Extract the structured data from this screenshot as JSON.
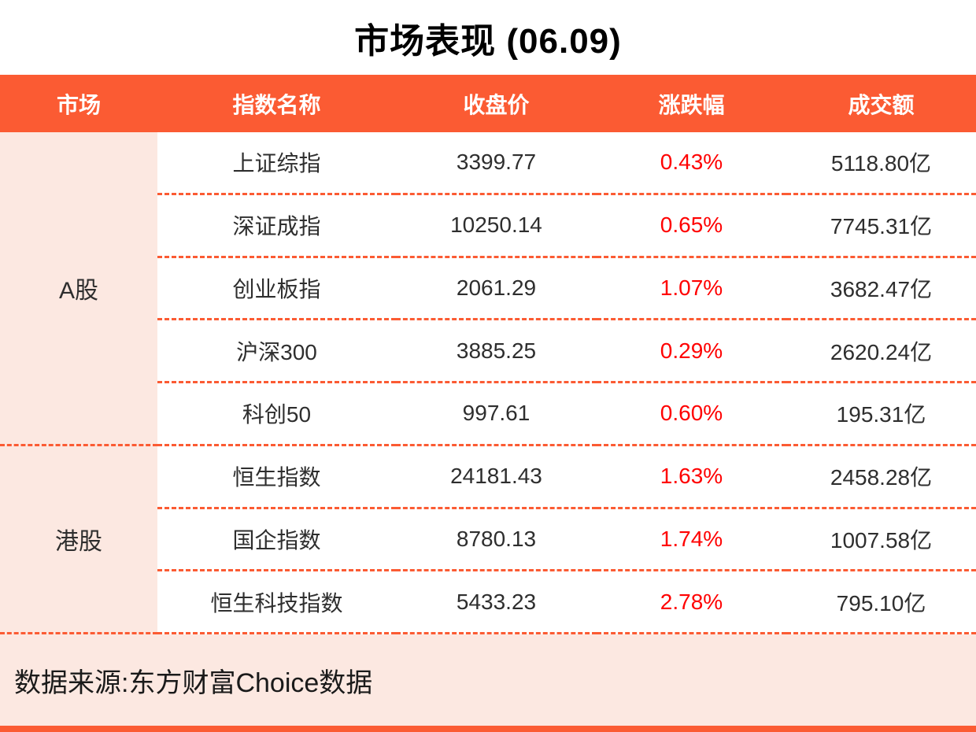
{
  "title": "市场表现 (06.09)",
  "colors": {
    "accent": "#FB5B33",
    "peach": "#FCE8E1",
    "up_red": "#FF0000",
    "body_text": "#2E2E2E"
  },
  "table": {
    "headers": [
      "市场",
      "指数名称",
      "收盘价",
      "涨跌幅",
      "成交额"
    ],
    "groups": [
      {
        "market": "A股",
        "rows": [
          {
            "name": "上证综指",
            "close": "3399.77",
            "change": "0.43%",
            "turnover": "5118.80亿"
          },
          {
            "name": "深证成指",
            "close": "10250.14",
            "change": "0.65%",
            "turnover": "7745.31亿"
          },
          {
            "name": "创业板指",
            "close": "2061.29",
            "change": "1.07%",
            "turnover": "3682.47亿"
          },
          {
            "name": "沪深300",
            "close": "3885.25",
            "change": "0.29%",
            "turnover": "2620.24亿"
          },
          {
            "name": "科创50",
            "close": "997.61",
            "change": "0.60%",
            "turnover": "195.31亿"
          }
        ]
      },
      {
        "market": "港股",
        "rows": [
          {
            "name": "恒生指数",
            "close": "24181.43",
            "change": "1.63%",
            "turnover": "2458.28亿"
          },
          {
            "name": "国企指数",
            "close": "8780.13",
            "change": "1.74%",
            "turnover": "1007.58亿"
          },
          {
            "name": "恒生科技指数",
            "close": "5433.23",
            "change": "2.78%",
            "turnover": "795.10亿"
          }
        ]
      }
    ]
  },
  "footer": {
    "source": "数据来源:东方财富Choice数据"
  },
  "chart_data": {
    "type": "table",
    "title": "市场表现 (06.09)",
    "columns": [
      "市场",
      "指数名称",
      "收盘价",
      "涨跌幅",
      "成交额"
    ],
    "rows": [
      [
        "A股",
        "上证综指",
        3399.77,
        "0.43%",
        "5118.80亿"
      ],
      [
        "A股",
        "深证成指",
        10250.14,
        "0.65%",
        "7745.31亿"
      ],
      [
        "A股",
        "创业板指",
        2061.29,
        "1.07%",
        "3682.47亿"
      ],
      [
        "A股",
        "沪深300",
        3885.25,
        "0.29%",
        "2620.24亿"
      ],
      [
        "A股",
        "科创50",
        997.61,
        "0.60%",
        "195.31亿"
      ],
      [
        "港股",
        "恒生指数",
        24181.43,
        "1.63%",
        "2458.28亿"
      ],
      [
        "港股",
        "国企指数",
        8780.13,
        "1.74%",
        "1007.58亿"
      ],
      [
        "港股",
        "恒生科技指数",
        5433.23,
        "2.78%",
        "795.10亿"
      ]
    ],
    "legend": null,
    "source": "数据来源:东方财富Choice数据"
  }
}
